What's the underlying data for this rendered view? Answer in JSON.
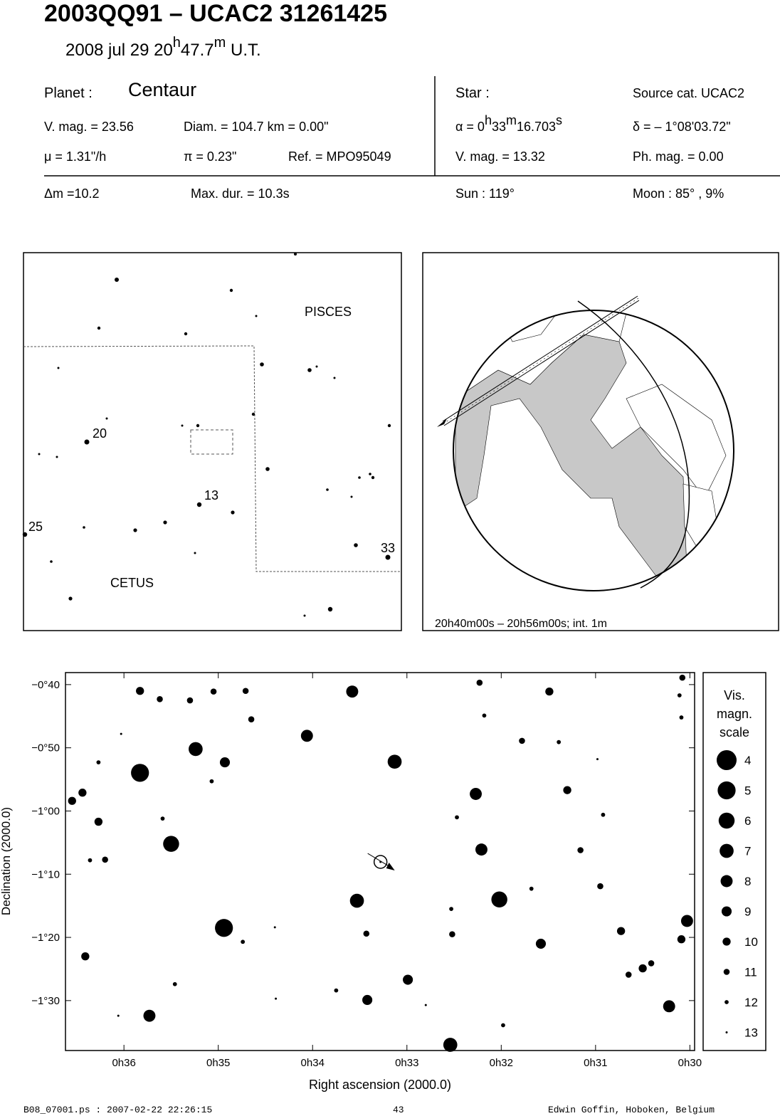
{
  "header": {
    "title": "2003QQ91  –  UCAC2 31261425",
    "date": [
      "2008 jul 29  20",
      "h",
      "47.7",
      "m",
      " U.T."
    ]
  },
  "info": {
    "planet_label": "Planet :",
    "planet_name": "Centaur",
    "vmag": "V. mag. = 23.56",
    "diam": "Diam. = 104.7 km = 0.00\"",
    "mu": "μ =  1.31\"/h",
    "pi": "π =  0.23\"",
    "ref": "Ref. = MPO95049",
    "star_label": "Star :",
    "source": "Source cat.  UCAC2",
    "alpha": [
      "α =  0",
      "h",
      "33",
      "m",
      "16.703",
      "s"
    ],
    "delta": "δ = – 1°08'03.72\"",
    "star_vmag": "V. mag. = 13.32",
    "phmag": "Ph. mag. =  0.00",
    "dm": "Δm =10.2",
    "maxdur": "Max. dur. = 10.3s",
    "sun": "Sun : 119°",
    "moon": "Moon :  85° ,  9%"
  },
  "finder": {
    "constellations": [
      "PISCES",
      "CETUS"
    ],
    "star_labels": [
      "20",
      "13",
      "25",
      "33"
    ]
  },
  "globe": {
    "caption": "20h40m00s – 20h56m00s; int.  1m"
  },
  "chart_data": {
    "type": "scatter",
    "x_label": "Right ascension (2000.0)",
    "y_label": "Declination (2000.0)",
    "xlim": [
      36.62,
      29.95
    ],
    "ylim": [
      -97.9,
      -38.1
    ],
    "xticks": [
      {
        "value": 36,
        "label": "0h36"
      },
      {
        "value": 35,
        "label": "0h35"
      },
      {
        "value": 34,
        "label": "0h34"
      },
      {
        "value": 33,
        "label": "0h33"
      },
      {
        "value": 32,
        "label": "0h32"
      },
      {
        "value": 31,
        "label": "0h31"
      },
      {
        "value": 30,
        "label": "0h30"
      }
    ],
    "yticks": [
      {
        "value": -40,
        "label": "−0°40"
      },
      {
        "value": -50,
        "label": "−0°50"
      },
      {
        "value": -60,
        "label": "−1°00"
      },
      {
        "value": -70,
        "label": "−1°10"
      },
      {
        "value": -80,
        "label": "−1°20"
      },
      {
        "value": -90,
        "label": "−1°30"
      }
    ],
    "color": "#000000",
    "x": [
      35.83,
      34.94,
      35.5,
      35.24,
      33.58,
      33.13,
      34.06,
      33.53,
      32.02,
      32.21,
      32.27,
      32.54,
      35.73,
      30.22,
      30.03,
      32.99,
      31.58,
      33.42,
      34.93,
      31.3,
      30.73,
      30.09,
      30.5,
      36.27,
      36.44,
      36.55,
      36.41,
      36.2,
      31.78,
      31.49,
      32.23,
      30.08,
      30.11,
      35.83,
      35.05,
      34.71,
      34.65,
      35.3,
      35.62,
      31.16,
      30.95,
      30.92,
      30.41,
      30.65,
      33.43,
      32.47,
      31.68,
      35.59,
      36.27,
      36.03,
      36.06,
      34.39,
      33.75,
      32.52,
      32.53,
      31.98,
      35.46,
      34.74,
      34.4,
      30.09,
      36.36,
      35.07,
      30.98,
      32.8,
      32.18,
      31.39
    ],
    "y": [
      -53.96,
      -78.5,
      -65.2,
      -50.2,
      -41.1,
      -52.2,
      -48.1,
      -74.2,
      -74.0,
      -66.1,
      -57.3,
      -97.0,
      -92.4,
      -90.9,
      -77.4,
      -86.7,
      -81.0,
      -89.9,
      -52.3,
      -56.7,
      -79.0,
      -80.3,
      -84.9,
      -61.7,
      -57.1,
      -58.4,
      -83.0,
      -67.7,
      -48.9,
      -41.1,
      -39.7,
      -38.9,
      -41.7,
      -41.0,
      -41.1,
      -41.0,
      -45.5,
      -42.5,
      -42.3,
      -66.2,
      -71.9,
      -60.6,
      -84.1,
      -85.9,
      -79.4,
      -61.0,
      -72.3,
      -61.2,
      -52.3,
      -47.8,
      -92.4,
      -89.7,
      -88.4,
      -79.5,
      -75.5,
      -93.9,
      -87.4,
      -80.7,
      -78.4,
      -45.2,
      -67.8,
      -55.3,
      -51.8,
      -90.7,
      -44.9,
      -49.1
    ],
    "magnitudes": [
      5,
      5,
      6,
      7,
      8,
      7,
      8,
      7,
      6,
      8,
      8,
      7,
      8,
      8,
      8,
      9,
      9,
      9,
      9,
      10,
      10,
      10,
      10,
      10,
      10,
      10,
      10,
      11,
      11,
      10,
      11,
      11,
      12,
      10,
      11,
      11,
      11,
      11,
      11,
      11,
      11,
      12,
      11,
      11,
      11,
      12,
      12,
      12,
      12,
      13,
      13,
      13,
      12,
      11,
      12,
      12,
      12,
      12,
      13,
      12,
      12,
      12,
      13,
      13,
      12,
      12
    ],
    "target": {
      "x": 33.28,
      "y": -68.06
    },
    "legend_title": [
      "Vis.",
      "magn.",
      "scale"
    ],
    "magnitude_scale": [
      4,
      5,
      6,
      7,
      8,
      9,
      10,
      11,
      12,
      13
    ]
  },
  "footer": {
    "file": "B08_07001.ps : 2007-02-22 22:26:15",
    "page": "43",
    "author": "Edwin Goffin, Hoboken, Belgium"
  }
}
